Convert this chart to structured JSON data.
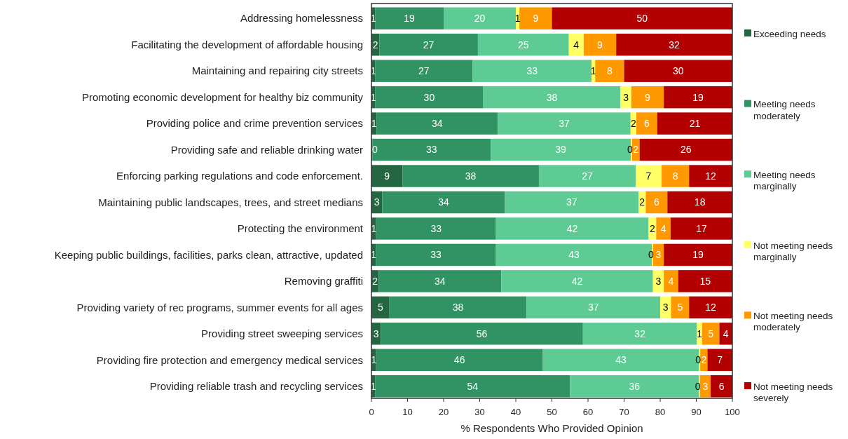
{
  "chart_data": {
    "type": "bar",
    "orientation": "horizontal",
    "stacked": true,
    "xlabel": "% Respondents Who Provided Opinion",
    "categories": [
      "Addressing homelessness",
      "Facilitating the development of affordable housing",
      "Maintaining and repairing city streets",
      "Promoting economic development for healthy biz community",
      "Providing police and crime prevention services",
      "Providing safe and reliable drinking water",
      "Enforcing parking regulations and code enforcement.",
      "Maintaining public landscapes, trees, and street medians",
      "Protecting the environment",
      "Keeping public buildings, facilities, parks clean, attractive, updated",
      "Removing graffiti",
      "Providing variety of rec programs, summer events for all ages",
      "Providing street sweeping services",
      "Providing fire protection and emergency medical services",
      "Providing reliable trash and recycling services"
    ],
    "series": [
      {
        "name": "Exceeding needs",
        "color": "#236641",
        "values": [
          1,
          2.2,
          1,
          1,
          1.4,
          0.3,
          8.6,
          3,
          1.3,
          1.2,
          2,
          5,
          2.6,
          1.3,
          1
        ],
        "value_labels": [
          "1",
          "2",
          "1",
          "1",
          "1",
          "0",
          "9",
          "3",
          "1",
          "1",
          "2",
          "5",
          "3",
          "1",
          "1"
        ]
      },
      {
        "name": "Meeting needs moderately",
        "color": "#319364",
        "values": [
          19,
          27.3,
          27,
          30,
          33.6,
          32.7,
          37.8,
          34,
          33.2,
          33.3,
          34,
          38,
          56,
          46.2,
          54
        ],
        "value_labels": [
          "19",
          "27",
          "27",
          "30",
          "34",
          "33",
          "38",
          "34",
          "33",
          "33",
          "34",
          "38",
          "56",
          "46",
          "54"
        ]
      },
      {
        "name": "Meeting needs marginally",
        "color": "#5ecb95",
        "values": [
          20,
          25.2,
          33,
          38,
          36.8,
          38.9,
          26.8,
          37,
          42.3,
          43.2,
          42,
          37,
          31.6,
          43.3,
          35.7
        ],
        "value_labels": [
          "20",
          "25",
          "33",
          "38",
          "37",
          "39",
          "27",
          "37",
          "42",
          "43",
          "42",
          "37",
          "32",
          "43",
          "36"
        ]
      },
      {
        "name": "Not meeting needs marginally",
        "color": "#ffff66",
        "values": [
          1,
          4.1,
          1,
          3,
          1.6,
          0.3,
          7.2,
          2,
          2.1,
          0.3,
          3,
          3,
          1.4,
          0.3,
          0.3
        ],
        "value_labels": [
          "1",
          "4",
          "1",
          "3",
          "2",
          "0",
          "7",
          "2",
          "2",
          "0",
          "3",
          "3",
          "1",
          "0",
          "0"
        ]
      },
      {
        "name": "Not meeting needs moderately",
        "color": "#ff9900",
        "values": [
          9,
          9,
          8,
          9,
          5.8,
          2.1,
          7.6,
          6,
          4,
          3,
          4,
          5,
          4.8,
          2,
          3
        ],
        "value_labels": [
          "9",
          "9",
          "8",
          "9",
          "6",
          "2",
          "8",
          "6",
          "4",
          "3",
          "4",
          "5",
          "5",
          "2",
          "3"
        ]
      },
      {
        "name": "Not meeting needs severely",
        "color": "#b30000",
        "values": [
          50,
          32.2,
          30,
          19,
          20.8,
          25.7,
          12,
          18,
          17.1,
          19,
          15,
          12,
          3.6,
          6.9,
          6
        ],
        "value_labels": [
          "50",
          "32",
          "30",
          "19",
          "21",
          "26",
          "12",
          "18",
          "17",
          "19",
          "15",
          "12",
          "4",
          "7",
          "6"
        ]
      }
    ],
    "xlim": [
      0,
      100
    ],
    "xticks": [
      0,
      10,
      20,
      30,
      40,
      50,
      60,
      70,
      80,
      90,
      100
    ],
    "grid": false,
    "legend": "right"
  }
}
